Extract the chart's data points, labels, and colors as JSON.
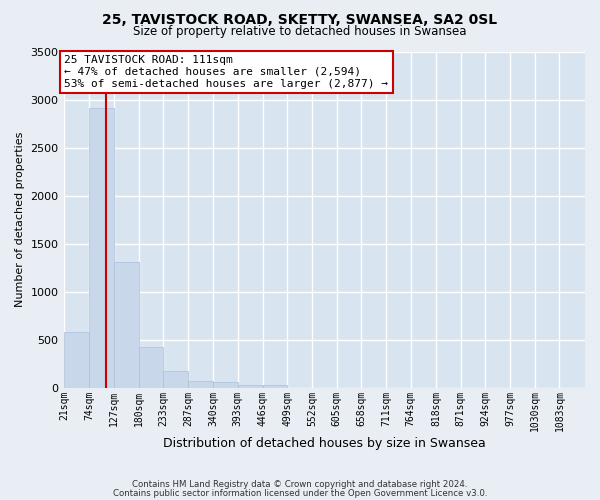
{
  "title": "25, TAVISTOCK ROAD, SKETTY, SWANSEA, SA2 0SL",
  "subtitle": "Size of property relative to detached houses in Swansea",
  "xlabel": "Distribution of detached houses by size in Swansea",
  "ylabel": "Number of detached properties",
  "bar_labels": [
    "21sqm",
    "74sqm",
    "127sqm",
    "180sqm",
    "233sqm",
    "287sqm",
    "340sqm",
    "393sqm",
    "446sqm",
    "499sqm",
    "552sqm",
    "605sqm",
    "658sqm",
    "711sqm",
    "764sqm",
    "818sqm",
    "871sqm",
    "924sqm",
    "977sqm",
    "1030sqm",
    "1083sqm"
  ],
  "bar_values": [
    580,
    2910,
    1310,
    420,
    175,
    65,
    55,
    30,
    25,
    0,
    0,
    0,
    0,
    0,
    0,
    0,
    0,
    0,
    0,
    0,
    0
  ],
  "bar_color": "#c8d8ea",
  "bar_edge_color": "#aac0d8",
  "ylim": [
    0,
    3500
  ],
  "yticks": [
    0,
    500,
    1000,
    1500,
    2000,
    2500,
    3000,
    3500
  ],
  "property_line_x": 111,
  "property_line_color": "#cc0000",
  "annotation_title": "25 TAVISTOCK ROAD: 111sqm",
  "annotation_line1": "← 47% of detached houses are smaller (2,594)",
  "annotation_line2": "53% of semi-detached houses are larger (2,877) →",
  "annotation_box_color": "#ffffff",
  "annotation_box_edge": "#cc0000",
  "footer1": "Contains HM Land Registry data © Crown copyright and database right 2024.",
  "footer2": "Contains public sector information licensed under the Open Government Licence v3.0.",
  "bg_color": "#e8eef4",
  "plot_bg_color": "#d8e4f0",
  "grid_color": "#ffffff",
  "bin_width": 53
}
